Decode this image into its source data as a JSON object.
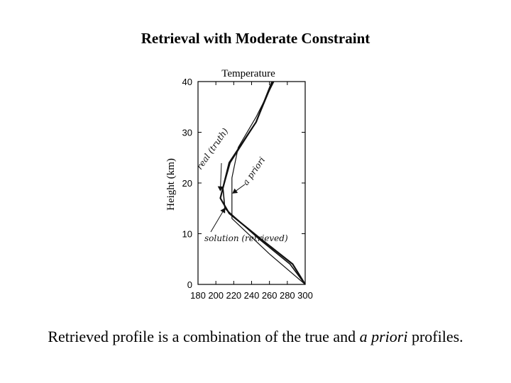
{
  "slide": {
    "title": "Retrieval with Moderate Constraint",
    "caption_prefix": "Retrieved profile is a combination of the true and ",
    "caption_italic": "a priori",
    "caption_suffix": " profiles."
  },
  "chart_data": {
    "type": "line",
    "title": "Temperature",
    "xlabel": "",
    "ylabel": "Height (km)",
    "xlim": [
      180,
      300
    ],
    "ylim": [
      0,
      40
    ],
    "xticks": [
      180,
      200,
      220,
      240,
      260,
      280,
      300
    ],
    "yticks": [
      0,
      10,
      20,
      30,
      40
    ],
    "grid": false,
    "series": [
      {
        "name": "real (truth)",
        "x": [
          300,
          286,
          250,
          215,
          205,
          215,
          245,
          263
        ],
        "y": [
          0,
          4,
          9,
          14,
          17,
          24,
          32,
          40
        ]
      },
      {
        "name": "a priori",
        "x": [
          300,
          260,
          218,
          218,
          225,
          245,
          265
        ],
        "y": [
          0,
          6,
          13,
          21,
          27,
          33,
          40
        ]
      },
      {
        "name": "solution (retrieved)",
        "x": [
          300,
          283,
          248,
          210,
          208,
          216,
          245,
          264
        ],
        "y": [
          0,
          4,
          9,
          15,
          19,
          24,
          32,
          40
        ]
      }
    ],
    "annotations": [
      {
        "text": "real (truth)",
        "target_series": "real (truth)"
      },
      {
        "text": "a priori",
        "target_series": "a priori"
      },
      {
        "text": "solution (retrieved)",
        "target_series": "solution (retrieved)"
      }
    ],
    "colors": {
      "line": "#111111",
      "axis": "#000000"
    }
  }
}
